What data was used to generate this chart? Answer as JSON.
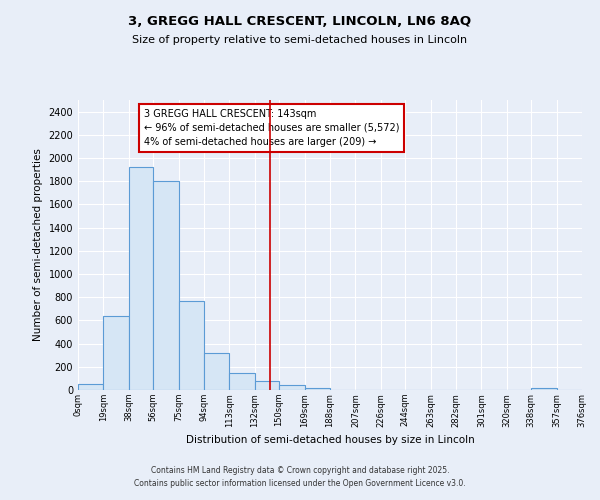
{
  "title_line1": "3, GREGG HALL CRESCENT, LINCOLN, LN6 8AQ",
  "title_line2": "Size of property relative to semi-detached houses in Lincoln",
  "xlabel": "Distribution of semi-detached houses by size in Lincoln",
  "ylabel": "Number of semi-detached properties",
  "bin_edges": [
    0,
    19,
    38,
    56,
    75,
    94,
    113,
    132,
    150,
    169,
    188,
    207,
    226,
    244,
    263,
    282,
    301,
    320,
    338,
    357,
    376
  ],
  "bar_heights": [
    50,
    640,
    1920,
    1800,
    770,
    315,
    145,
    75,
    40,
    20,
    0,
    0,
    0,
    0,
    0,
    0,
    0,
    0,
    20,
    0
  ],
  "bar_face_color": "#d6e6f5",
  "bar_edge_color": "#5b9bd5",
  "vline_x": 143,
  "vline_color": "#cc0000",
  "ylim": [
    0,
    2500
  ],
  "yticks": [
    0,
    200,
    400,
    600,
    800,
    1000,
    1200,
    1400,
    1600,
    1800,
    2000,
    2200,
    2400
  ],
  "annotation_text": "3 GREGG HALL CRESCENT: 143sqm\n← 96% of semi-detached houses are smaller (5,572)\n4% of semi-detached houses are larger (209) →",
  "bg_color": "#e8eef8",
  "grid_color": "#ffffff",
  "footer_line1": "Contains HM Land Registry data © Crown copyright and database right 2025.",
  "footer_line2": "Contains public sector information licensed under the Open Government Licence v3.0.",
  "tick_labels": [
    "0sqm",
    "19sqm",
    "38sqm",
    "56sqm",
    "75sqm",
    "94sqm",
    "113sqm",
    "132sqm",
    "150sqm",
    "169sqm",
    "188sqm",
    "207sqm",
    "226sqm",
    "244sqm",
    "263sqm",
    "282sqm",
    "301sqm",
    "320sqm",
    "338sqm",
    "357sqm",
    "376sqm"
  ]
}
